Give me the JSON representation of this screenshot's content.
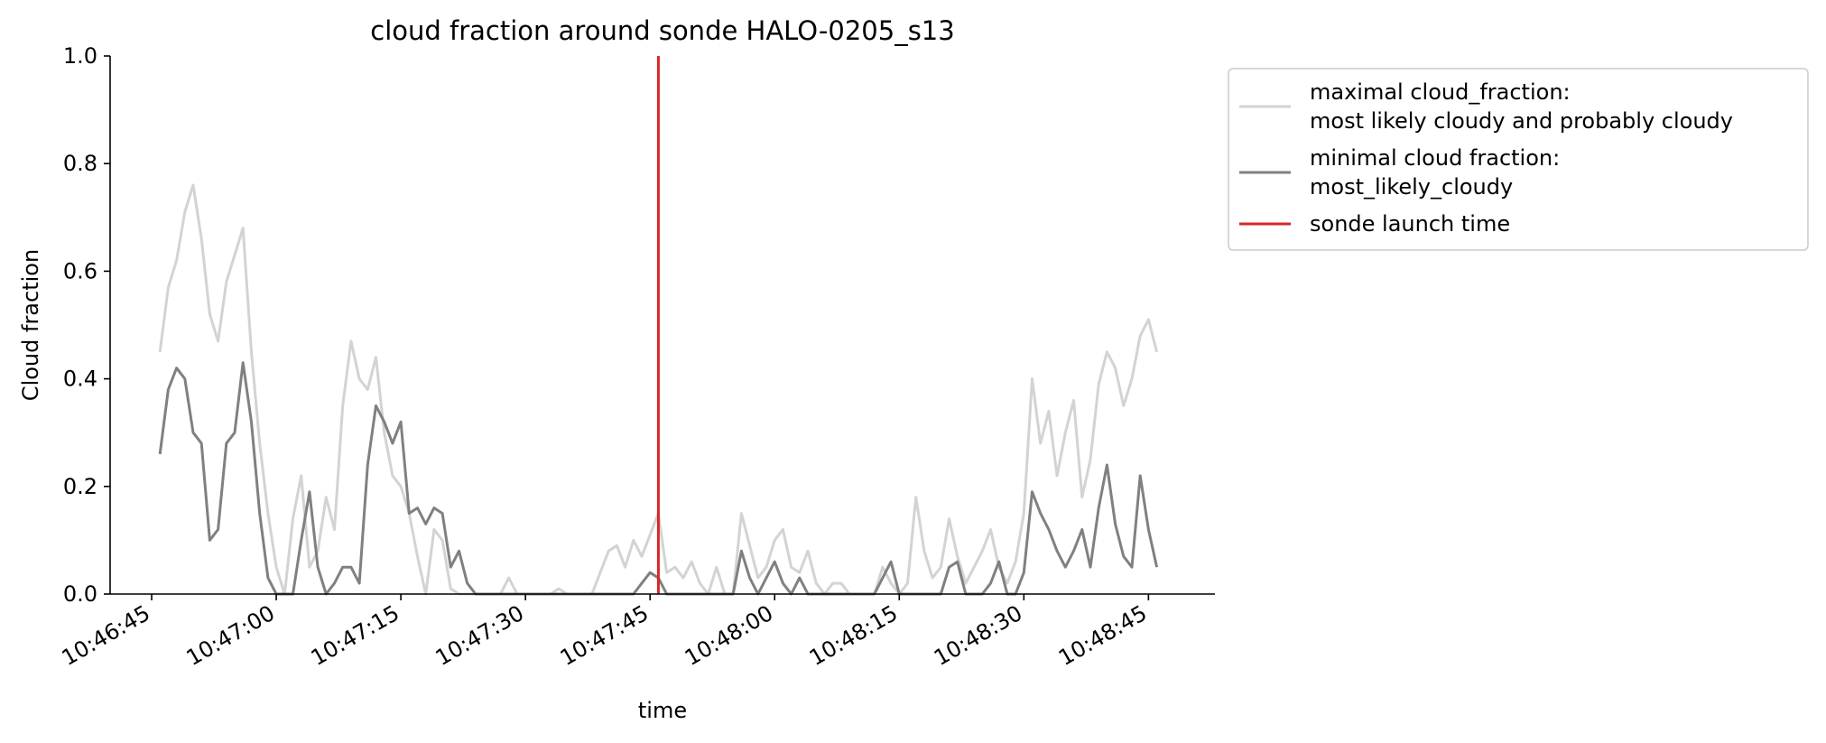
{
  "chart_data": {
    "type": "line",
    "title": "cloud fraction around sonde HALO-0205_s13",
    "xlabel": "time",
    "ylabel": "Cloud fraction",
    "ylim": [
      0,
      1.0
    ],
    "xlim": [
      "10:46:40",
      "10:48:53"
    ],
    "x_ticks": [
      "10:46:45",
      "10:47:00",
      "10:47:15",
      "10:47:30",
      "10:47:45",
      "10:48:00",
      "10:48:15",
      "10:48:30",
      "10:48:45"
    ],
    "y_ticks": [
      "0.0",
      "0.2",
      "0.4",
      "0.6",
      "0.8",
      "1.0"
    ],
    "grid": false,
    "legend_placement": "outside-right",
    "series": [
      {
        "name": "maximal cloud_fraction:\nmost likely cloudy and probably cloudy",
        "color": "#d3d3d3",
        "x": [
          "10:46:46",
          "10:46:47",
          "10:46:48",
          "10:46:49",
          "10:46:50",
          "10:46:51",
          "10:46:52",
          "10:46:53",
          "10:46:54",
          "10:46:55",
          "10:46:56",
          "10:46:57",
          "10:46:58",
          "10:46:59",
          "10:47:00",
          "10:47:01",
          "10:47:02",
          "10:47:03",
          "10:47:04",
          "10:47:05",
          "10:47:06",
          "10:47:07",
          "10:47:08",
          "10:47:09",
          "10:47:10",
          "10:47:11",
          "10:47:12",
          "10:47:13",
          "10:47:14",
          "10:47:15",
          "10:47:16",
          "10:47:17",
          "10:47:18",
          "10:47:19",
          "10:47:20",
          "10:47:21",
          "10:47:22",
          "10:47:23",
          "10:47:24",
          "10:47:25",
          "10:47:26",
          "10:47:27",
          "10:47:28",
          "10:47:29",
          "10:47:30",
          "10:47:31",
          "10:47:32",
          "10:47:33",
          "10:47:34",
          "10:47:35",
          "10:47:36",
          "10:47:37",
          "10:47:38",
          "10:47:39",
          "10:47:40",
          "10:47:41",
          "10:47:42",
          "10:47:43",
          "10:47:44",
          "10:47:45",
          "10:47:46",
          "10:47:47",
          "10:47:48",
          "10:47:49",
          "10:47:50",
          "10:47:51",
          "10:47:52",
          "10:47:53",
          "10:47:54",
          "10:47:55",
          "10:47:56",
          "10:47:57",
          "10:47:58",
          "10:47:59",
          "10:48:00",
          "10:48:01",
          "10:48:02",
          "10:48:03",
          "10:48:04",
          "10:48:05",
          "10:48:06",
          "10:48:07",
          "10:48:08",
          "10:48:09",
          "10:48:10",
          "10:48:11",
          "10:48:12",
          "10:48:13",
          "10:48:14",
          "10:48:15",
          "10:48:16",
          "10:48:17",
          "10:48:18",
          "10:48:19",
          "10:48:20",
          "10:48:21",
          "10:48:22",
          "10:48:23",
          "10:48:24",
          "10:48:25",
          "10:48:26",
          "10:48:27",
          "10:48:28",
          "10:48:29",
          "10:48:30",
          "10:48:31",
          "10:48:32",
          "10:48:33",
          "10:48:34",
          "10:48:35",
          "10:48:36",
          "10:48:37",
          "10:48:38",
          "10:48:39",
          "10:48:40",
          "10:48:41",
          "10:48:42",
          "10:48:43",
          "10:48:44",
          "10:48:45",
          "10:48:46"
        ],
        "values": [
          0.45,
          0.57,
          0.62,
          0.71,
          0.76,
          0.66,
          0.52,
          0.47,
          0.58,
          0.63,
          0.68,
          0.45,
          0.28,
          0.15,
          0.05,
          0.0,
          0.14,
          0.22,
          0.05,
          0.08,
          0.18,
          0.12,
          0.35,
          0.47,
          0.4,
          0.38,
          0.44,
          0.3,
          0.22,
          0.2,
          0.15,
          0.07,
          0.0,
          0.12,
          0.1,
          0.01,
          0.0,
          0.0,
          0.0,
          0.0,
          0.0,
          0.0,
          0.03,
          0.0,
          0.0,
          0.0,
          0.0,
          0.0,
          0.01,
          0.0,
          0.0,
          0.0,
          0.0,
          0.04,
          0.08,
          0.09,
          0.05,
          0.1,
          0.07,
          0.11,
          0.15,
          0.04,
          0.05,
          0.03,
          0.06,
          0.02,
          0.0,
          0.05,
          0.0,
          0.0,
          0.15,
          0.09,
          0.03,
          0.05,
          0.1,
          0.12,
          0.05,
          0.04,
          0.08,
          0.02,
          0.0,
          0.02,
          0.02,
          0.0,
          0.0,
          0.0,
          0.0,
          0.05,
          0.02,
          0.0,
          0.02,
          0.18,
          0.08,
          0.03,
          0.05,
          0.14,
          0.07,
          0.02,
          0.05,
          0.08,
          0.12,
          0.05,
          0.02,
          0.06,
          0.15,
          0.4,
          0.28,
          0.34,
          0.22,
          0.3,
          0.36,
          0.18,
          0.25,
          0.39,
          0.45,
          0.42,
          0.35,
          0.4,
          0.48,
          0.51,
          0.45
        ]
      },
      {
        "name": "minimal cloud fraction:\nmost_likely_cloudy",
        "color": "#808080",
        "x": [
          "10:46:46",
          "10:46:47",
          "10:46:48",
          "10:46:49",
          "10:46:50",
          "10:46:51",
          "10:46:52",
          "10:46:53",
          "10:46:54",
          "10:46:55",
          "10:46:56",
          "10:46:57",
          "10:46:58",
          "10:46:59",
          "10:47:00",
          "10:47:01",
          "10:47:02",
          "10:47:03",
          "10:47:04",
          "10:47:05",
          "10:47:06",
          "10:47:07",
          "10:47:08",
          "10:47:09",
          "10:47:10",
          "10:47:11",
          "10:47:12",
          "10:47:13",
          "10:47:14",
          "10:47:15",
          "10:47:16",
          "10:47:17",
          "10:47:18",
          "10:47:19",
          "10:47:20",
          "10:47:21",
          "10:47:22",
          "10:47:23",
          "10:47:24",
          "10:47:25",
          "10:47:26",
          "10:47:27",
          "10:47:28",
          "10:47:29",
          "10:47:30",
          "10:47:31",
          "10:47:32",
          "10:47:33",
          "10:47:34",
          "10:47:35",
          "10:47:36",
          "10:47:37",
          "10:47:38",
          "10:47:39",
          "10:47:40",
          "10:47:41",
          "10:47:42",
          "10:47:43",
          "10:47:44",
          "10:47:45",
          "10:47:46",
          "10:47:47",
          "10:47:48",
          "10:47:49",
          "10:47:50",
          "10:47:51",
          "10:47:52",
          "10:47:53",
          "10:47:54",
          "10:47:55",
          "10:47:56",
          "10:47:57",
          "10:47:58",
          "10:47:59",
          "10:48:00",
          "10:48:01",
          "10:48:02",
          "10:48:03",
          "10:48:04",
          "10:48:05",
          "10:48:06",
          "10:48:07",
          "10:48:08",
          "10:48:09",
          "10:48:10",
          "10:48:11",
          "10:48:12",
          "10:48:13",
          "10:48:14",
          "10:48:15",
          "10:48:16",
          "10:48:17",
          "10:48:18",
          "10:48:19",
          "10:48:20",
          "10:48:21",
          "10:48:22",
          "10:48:23",
          "10:48:24",
          "10:48:25",
          "10:48:26",
          "10:48:27",
          "10:48:28",
          "10:48:29",
          "10:48:30",
          "10:48:31",
          "10:48:32",
          "10:48:33",
          "10:48:34",
          "10:48:35",
          "10:48:36",
          "10:48:37",
          "10:48:38",
          "10:48:39",
          "10:48:40",
          "10:48:41",
          "10:48:42",
          "10:48:43",
          "10:48:44",
          "10:48:45",
          "10:48:46"
        ],
        "values": [
          0.26,
          0.38,
          0.42,
          0.4,
          0.3,
          0.28,
          0.1,
          0.12,
          0.28,
          0.3,
          0.43,
          0.32,
          0.15,
          0.03,
          0.0,
          0.0,
          0.0,
          0.1,
          0.19,
          0.05,
          0.0,
          0.02,
          0.05,
          0.05,
          0.02,
          0.24,
          0.35,
          0.32,
          0.28,
          0.32,
          0.15,
          0.16,
          0.13,
          0.16,
          0.15,
          0.05,
          0.08,
          0.02,
          0.0,
          0.0,
          0.0,
          0.0,
          0.0,
          0.0,
          0.0,
          0.0,
          0.0,
          0.0,
          0.0,
          0.0,
          0.0,
          0.0,
          0.0,
          0.0,
          0.0,
          0.0,
          0.0,
          0.0,
          0.02,
          0.04,
          0.03,
          0.0,
          0.0,
          0.0,
          0.0,
          0.0,
          0.0,
          0.0,
          0.0,
          0.0,
          0.08,
          0.03,
          0.0,
          0.03,
          0.06,
          0.02,
          0.0,
          0.03,
          0.0,
          0.0,
          0.0,
          0.0,
          0.0,
          0.0,
          0.0,
          0.0,
          0.0,
          0.03,
          0.06,
          0.0,
          0.0,
          0.0,
          0.0,
          0.0,
          0.0,
          0.05,
          0.06,
          0.0,
          0.0,
          0.0,
          0.02,
          0.06,
          0.0,
          0.0,
          0.04,
          0.19,
          0.15,
          0.12,
          0.08,
          0.05,
          0.08,
          0.12,
          0.05,
          0.16,
          0.24,
          0.13,
          0.07,
          0.05,
          0.22,
          0.12,
          0.05
        ]
      }
    ],
    "vlines": [
      {
        "name": "sonde launch time",
        "x": "10:47:46",
        "color": "#d62728"
      }
    ]
  }
}
